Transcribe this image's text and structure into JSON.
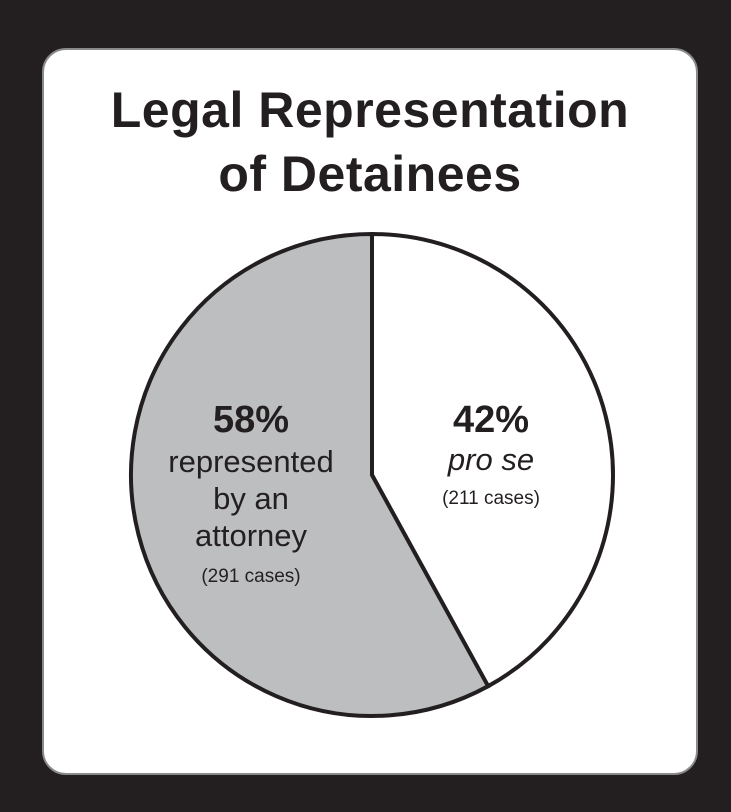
{
  "title_lines": [
    "Legal Representation",
    "of Detainees"
  ],
  "colors": {
    "background": "#231f20",
    "card": "#ffffff",
    "represented": "#bcbec0",
    "pro_se": "#ffffff",
    "stroke": "#231f20"
  },
  "chart_data": {
    "type": "pie",
    "title": "Legal Representation of Detainees",
    "slices": [
      {
        "label": "pro se",
        "percent": 42,
        "percent_label": "42%",
        "label_lines": [
          "pro se"
        ],
        "cases": 211,
        "cases_label": "(211 cases)",
        "color": "#ffffff"
      },
      {
        "label": "represented by an attorney",
        "percent": 58,
        "percent_label": "58%",
        "label_lines": [
          "represented",
          "by an",
          "attorney"
        ],
        "cases": 291,
        "cases_label": "(291 cases)",
        "color": "#bcbec0"
      }
    ]
  }
}
